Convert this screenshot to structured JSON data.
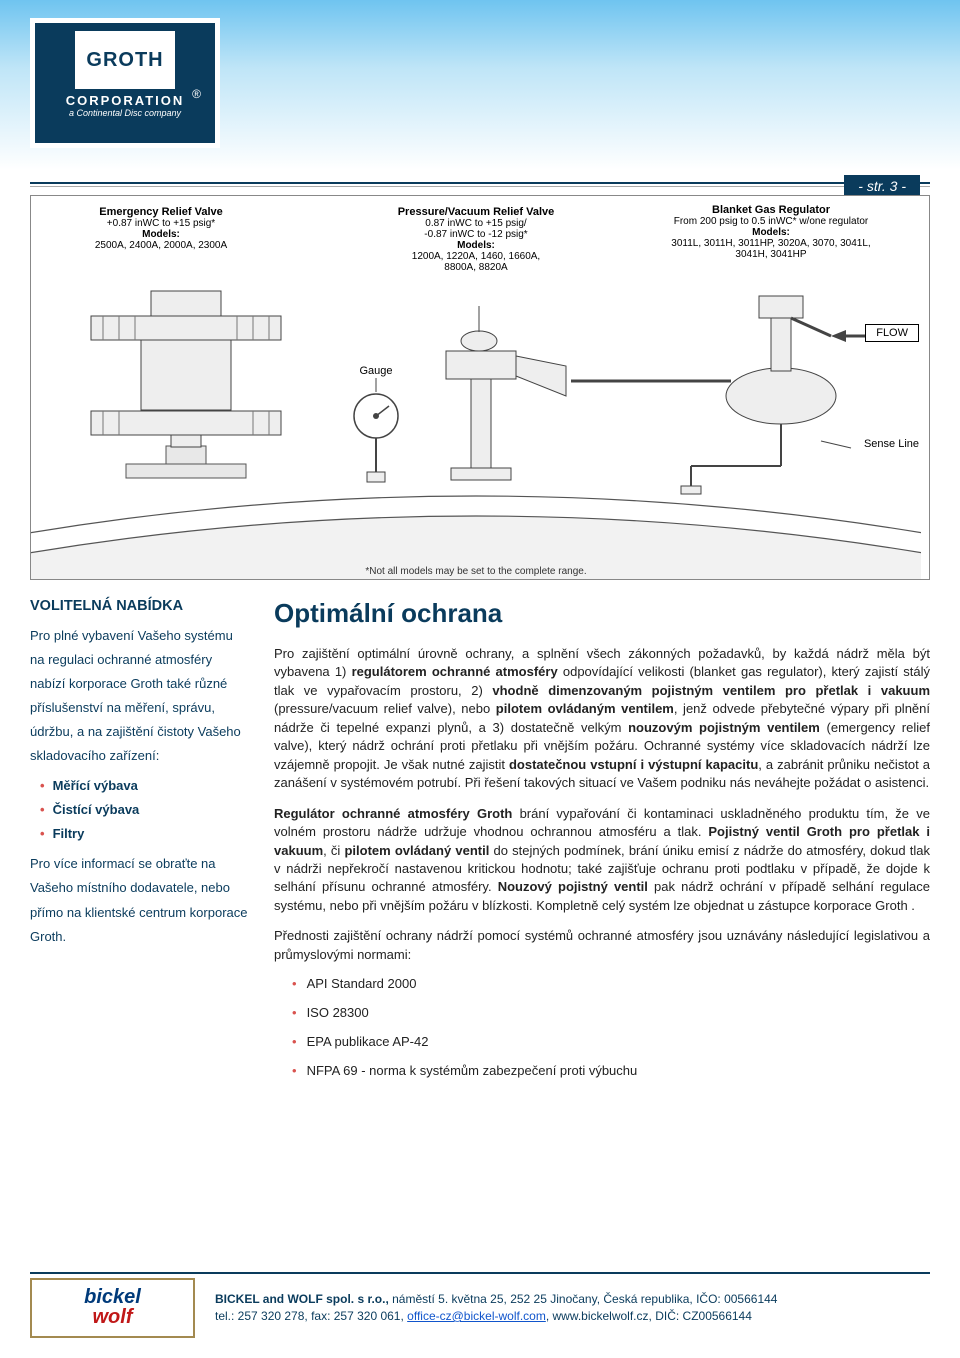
{
  "header": {
    "logo_brand": "GROTH",
    "logo_corp": "CORPORATION",
    "logo_sub": "a Continental Disc company",
    "logo_reg": "®",
    "page_number": "- str. 3 -"
  },
  "diagram": {
    "erv": {
      "title": "Emergency Relief Valve",
      "range": "+0.87 inWC to +15 psig*",
      "models_label": "Models:",
      "models": "2500A, 2400A, 2000A, 2300A"
    },
    "pvrv": {
      "title": "Pressure/Vacuum Relief Valve",
      "range": "0.87 inWC to +15 psig/\n-0.87 inWC to -12 psig*",
      "models_label": "Models:",
      "models": "1200A, 1220A, 1460, 1660A,\n8800A, 8820A"
    },
    "bgr": {
      "title": "Blanket Gas Regulator",
      "range": "From 200 psig to 0.5 inWC* w/one regulator",
      "models_label": "Models:",
      "models": "3011L, 3011H, 3011HP, 3020A, 3070, 3041L,\n3041H, 3041HP"
    },
    "gauge_label": "Gauge",
    "flow_label": "FLOW",
    "sense_label": "Sense Line",
    "footnote": "*Not all models may be set to the complete range."
  },
  "sidebar": {
    "heading": "VOLITELNÁ NABÍDKA",
    "intro": "Pro plné vybavení Vašeho systému na regulaci ochranné atmosféry nabízí korporace Groth také různé příslušenství na měření, správu, údržbu, a na zajištění čistoty Vašeho skladovacího zařízení:",
    "items": [
      "Měřící výbava",
      "Čistící výbava",
      "Filtry"
    ],
    "outro": "Pro více informací se obraťte na Vašeho místního dodavatele, nebo přímo na klientské centrum korporace Groth."
  },
  "main": {
    "title": "Optimální ochrana",
    "p1": "Pro zajištění optimální úrovně ochrany, a splnění všech zákonných požadavků, by každá nádrž měla být vybavena 1) <b>regulátorem ochranné atmosféry</b> odpovídající velikosti (blanket gas regulator), který zajistí stálý tlak ve vypařovacím prostoru, 2) <b>vhodně dimenzovaným pojistným ventilem pro přetlak i vakuum</b> (pressure/vacuum relief valve), nebo <b>pilotem ovládaným ventilem</b>, jenž odvede přebytečné výpary při plnění nádrže či tepelné expanzi plynů, a 3) dostatečně velkým <b>nouzovým pojistným ventilem</b> (emergency relief valve), který nádrž ochrání proti přetlaku při vnějším požáru. Ochranné systémy více skladovacích nádrží lze vzájemně propojit. Je však nutné zajistit <b>dostatečnou vstupní i výstupní kapacitu</b>, a zabránit průniku nečistot a zanášení v systémovém potrubí. Při řešení takových situací ve Vašem podniku nás neváhejte požádat o asistenci.",
    "p2": "<b>Regulátor ochranné atmosféry Groth</b>  brání vypařování či kontaminaci uskladněného produktu tím, že ve volném prostoru nádrže udržuje vhodnou ochrannou atmosféru a tlak. <b>Pojistný ventil Groth  pro přetlak i vakuum</b>, či <b>pilotem ovládaný ventil</b> do stejných podmínek, brání úniku emisí z nádrže do atmosféry, dokud tlak v nádrži nepřekročí nastavenou kritickou hodnotu; také zajišťuje ochranu proti podtlaku v případě, že dojde k selhání přísunu ochranné atmosféry. <b>Nouzový pojistný ventil</b> pak nádrž ochrání v případě selhání regulace systému, nebo při vnějším požáru v blízkosti. Kompletně celý systém lze objednat u zástupce korporace Groth .",
    "p3": "Přednosti zajištění ochrany nádrží pomocí systémů ochranné atmosféry jsou uznávány následující legislativou a průmyslovými normami:",
    "standards": [
      "API Standard 2000",
      "ISO 28300",
      "EPA publikace AP-42",
      "NFPA 69 - norma k systémům zabezpečení proti výbuchu"
    ]
  },
  "footer": {
    "bw_line1": "bickel",
    "bw_line2": "wolf",
    "line1": "<b>BICKEL and WOLF spol. s r.o.,</b> náměstí 5. května 25, 252 25  Jinočany, Česká republika, IČO: 00566144",
    "line2": "tel.: 257 320 278, fax: 257 320 061, <a href='#'>office-cz@bickel-wolf.com</a>, www.bickelwolf.cz, DIČ: CZ00566144"
  },
  "colors": {
    "brand_navy": "#0a3b5c",
    "accent_red": "#d9534f",
    "gradient_top": "#6fc4f0",
    "gradient_mid": "#bfe5f7"
  }
}
